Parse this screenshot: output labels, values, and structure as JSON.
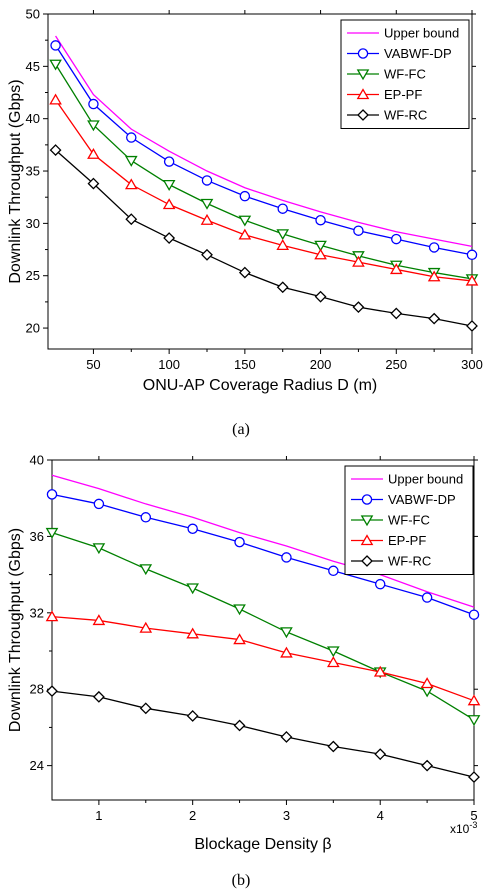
{
  "chart_data": [
    {
      "type": "line",
      "caption": "(a)",
      "xlabel": "ONU-AP Coverage Radius D (m)",
      "ylabel": "Downlink Throughput (Gbps)",
      "xlim": [
        20,
        300
      ],
      "ylim": [
        18,
        50
      ],
      "xticks": [
        50,
        100,
        150,
        200,
        250,
        300
      ],
      "yticks": [
        20,
        25,
        30,
        35,
        40,
        45,
        50
      ],
      "legend_position": "top-right",
      "x": [
        25,
        50,
        75,
        100,
        125,
        150,
        175,
        200,
        225,
        250,
        275,
        300
      ],
      "series": [
        {
          "name": "Upper bound",
          "color": "#ff00ff",
          "marker": "none",
          "values": [
            47.9,
            42.3,
            39.0,
            36.9,
            35.0,
            33.4,
            32.2,
            31.1,
            30.1,
            29.2,
            28.5,
            27.8
          ]
        },
        {
          "name": "VABWF-DP",
          "color": "#0000ff",
          "marker": "circle",
          "values": [
            47.0,
            41.4,
            38.2,
            35.9,
            34.1,
            32.6,
            31.4,
            30.3,
            29.3,
            28.5,
            27.7,
            27.0
          ]
        },
        {
          "name": "WF-FC",
          "color": "#008000",
          "marker": "triangle-down",
          "values": [
            45.2,
            39.4,
            36.0,
            33.7,
            31.9,
            30.3,
            29.0,
            27.9,
            26.9,
            26.0,
            25.3,
            24.7
          ]
        },
        {
          "name": "EP-PF",
          "color": "#ff0000",
          "marker": "triangle-up",
          "values": [
            41.8,
            36.6,
            33.7,
            31.8,
            30.3,
            28.9,
            27.9,
            27.0,
            26.3,
            25.6,
            24.9,
            24.5
          ]
        },
        {
          "name": "WF-RC",
          "color": "#000000",
          "marker": "diamond",
          "values": [
            37.0,
            33.8,
            30.4,
            28.6,
            27.0,
            25.3,
            23.9,
            23.0,
            22.0,
            21.4,
            20.9,
            20.2
          ]
        }
      ]
    },
    {
      "type": "line",
      "caption": "(b)",
      "xlabel": "Blockage Density β",
      "ylabel": "Downlink Throughput (Gbps)",
      "multiplier_label": "x10",
      "multiplier_exponent": "-3",
      "xlim": [
        0.5,
        5
      ],
      "ylim": [
        22.2,
        40
      ],
      "xticks": [
        1,
        2,
        3,
        4,
        5
      ],
      "yticks": [
        24,
        28,
        32,
        36,
        40
      ],
      "legend_position": "top-right",
      "x": [
        0.5,
        1.0,
        1.5,
        2.0,
        2.5,
        3.0,
        3.5,
        4.0,
        4.5,
        5.0
      ],
      "series": [
        {
          "name": "Upper bound",
          "color": "#ff00ff",
          "marker": "none",
          "values": [
            39.2,
            38.5,
            37.7,
            37.0,
            36.2,
            35.5,
            34.7,
            34.0,
            33.1,
            32.3
          ]
        },
        {
          "name": "VABWF-DP",
          "color": "#0000ff",
          "marker": "circle",
          "values": [
            38.2,
            37.7,
            37.0,
            36.4,
            35.7,
            34.9,
            34.2,
            33.5,
            32.8,
            31.9
          ]
        },
        {
          "name": "WF-FC",
          "color": "#008000",
          "marker": "triangle-down",
          "values": [
            36.2,
            35.4,
            34.3,
            33.3,
            32.2,
            31.0,
            30.0,
            28.9,
            27.9,
            26.4
          ]
        },
        {
          "name": "EP-PF",
          "color": "#ff0000",
          "marker": "triangle-up",
          "values": [
            31.8,
            31.6,
            31.2,
            30.9,
            30.6,
            29.9,
            29.4,
            28.9,
            28.3,
            27.4
          ]
        },
        {
          "name": "WF-RC",
          "color": "#000000",
          "marker": "diamond",
          "values": [
            27.9,
            27.6,
            27.0,
            26.6,
            26.1,
            25.5,
            25.0,
            24.6,
            24.0,
            23.4
          ]
        }
      ]
    }
  ]
}
